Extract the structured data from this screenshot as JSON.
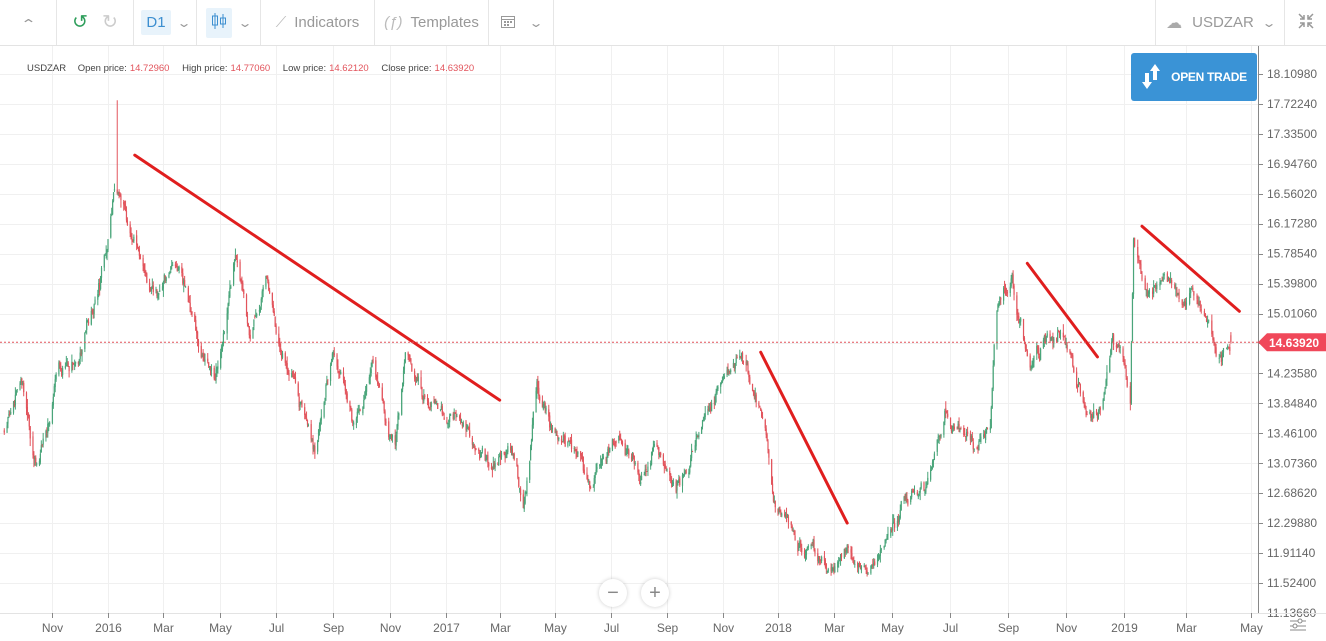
{
  "toolbar": {
    "timeframe": "D1",
    "indicators_label": "Indicators",
    "templates_label": "Templates",
    "symbol": "USDZAR",
    "icons": [
      "chevron-up-icon",
      "undo-icon",
      "redo-icon",
      "chevron-down-icon",
      "candlestick-icon",
      "indicators-icon",
      "function-icon",
      "calendar-icon",
      "cloud-upload-icon",
      "fullscreen-exit-icon"
    ]
  },
  "info": {
    "symbol": "USDZAR",
    "open_label": "Open price:",
    "open": "14.72960",
    "high_label": "High price:",
    "high": "14.77060",
    "low_label": "Low price:",
    "low": "14.62120",
    "close_label": "Close price:",
    "close": "14.63920"
  },
  "open_trade_label": "OPEN TRADE",
  "current_price_label": "14.63920",
  "colors": {
    "up": "#4aa57a",
    "down": "#e2545c",
    "trendline": "#e01e1e",
    "accent": "#3a93d6",
    "price_line": "#e2545c"
  },
  "chart_data": {
    "type": "candlestick",
    "symbol": "USDZAR",
    "timeframe": "D1",
    "ylim": [
      11.1366,
      18.1098
    ],
    "y_ticks": [
      "18.10980",
      "17.72240",
      "17.33500",
      "16.94760",
      "16.56020",
      "16.17280",
      "15.78540",
      "15.39800",
      "15.01060",
      "14.23580",
      "13.84840",
      "13.46100",
      "13.07360",
      "12.68620",
      "12.29880",
      "11.91140",
      "11.52400",
      "11.13660"
    ],
    "x_ticks": [
      {
        "label": "Nov",
        "date": "2015-11-01"
      },
      {
        "label": "2016",
        "date": "2016-01-01"
      },
      {
        "label": "Mar",
        "date": "2016-03-01"
      },
      {
        "label": "May",
        "date": "2016-05-01"
      },
      {
        "label": "Jul",
        "date": "2016-07-01"
      },
      {
        "label": "Sep",
        "date": "2016-09-01"
      },
      {
        "label": "Nov",
        "date": "2016-11-01"
      },
      {
        "label": "2017",
        "date": "2017-01-01"
      },
      {
        "label": "Mar",
        "date": "2017-03-01"
      },
      {
        "label": "May",
        "date": "2017-05-01"
      },
      {
        "label": "Jul",
        "date": "2017-07-01"
      },
      {
        "label": "Sep",
        "date": "2017-09-01"
      },
      {
        "label": "Nov",
        "date": "2017-11-01"
      },
      {
        "label": "2018",
        "date": "2018-01-01"
      },
      {
        "label": "Mar",
        "date": "2018-03-01"
      },
      {
        "label": "May",
        "date": "2018-05-01"
      },
      {
        "label": "Jul",
        "date": "2018-07-01"
      },
      {
        "label": "Sep",
        "date": "2018-09-01"
      },
      {
        "label": "Nov",
        "date": "2018-11-01"
      },
      {
        "label": "2019",
        "date": "2019-01-01"
      },
      {
        "label": "Mar",
        "date": "2019-03-01"
      },
      {
        "label": "May",
        "date": "2019-05-01"
      }
    ],
    "close_path": [
      [
        "2015-09-11",
        13.5
      ],
      [
        "2015-09-28",
        14.02
      ],
      [
        "2015-10-17",
        13.05
      ],
      [
        "2015-11-10",
        14.28
      ],
      [
        "2015-12-02",
        14.47
      ],
      [
        "2015-12-18",
        15.31
      ],
      [
        "2016-01-01",
        15.96
      ],
      [
        "2016-01-08",
        16.74
      ],
      [
        "2016-01-25",
        16.09
      ],
      [
        "2016-02-15",
        15.31
      ],
      [
        "2016-03-14",
        15.7
      ],
      [
        "2016-04-10",
        14.54
      ],
      [
        "2016-04-26",
        14.21
      ],
      [
        "2016-05-18",
        15.77
      ],
      [
        "2016-06-03",
        14.8
      ],
      [
        "2016-06-22",
        15.38
      ],
      [
        "2016-07-16",
        14.28
      ],
      [
        "2016-08-12",
        13.31
      ],
      [
        "2016-09-01",
        14.54
      ],
      [
        "2016-09-25",
        13.57
      ],
      [
        "2016-10-13",
        14.28
      ],
      [
        "2016-11-07",
        13.24
      ],
      [
        "2016-11-18",
        14.47
      ],
      [
        "2016-12-15",
        13.89
      ],
      [
        "2017-01-16",
        13.63
      ],
      [
        "2017-02-18",
        12.98
      ],
      [
        "2017-03-12",
        13.24
      ],
      [
        "2017-03-27",
        12.47
      ],
      [
        "2017-04-11",
        13.89
      ],
      [
        "2017-05-06",
        13.37
      ],
      [
        "2017-06-08",
        12.79
      ],
      [
        "2017-07-11",
        13.44
      ],
      [
        "2017-08-02",
        12.92
      ],
      [
        "2017-08-19",
        13.37
      ],
      [
        "2017-09-15",
        12.85
      ],
      [
        "2017-10-13",
        13.7
      ],
      [
        "2017-11-06",
        14.28
      ],
      [
        "2017-11-20",
        14.47
      ],
      [
        "2017-12-18",
        13.63
      ],
      [
        "2017-12-29",
        12.6
      ],
      [
        "2018-01-24",
        12.08
      ],
      [
        "2018-02-25",
        11.63
      ],
      [
        "2018-03-13",
        11.89
      ],
      [
        "2018-03-31",
        11.69
      ],
      [
        "2018-04-24",
        12.08
      ],
      [
        "2018-05-15",
        12.6
      ],
      [
        "2018-06-05",
        12.73
      ],
      [
        "2018-06-26",
        13.76
      ],
      [
        "2018-07-28",
        13.18
      ],
      [
        "2018-08-13",
        13.5
      ],
      [
        "2018-08-18",
        14.93
      ],
      [
        "2018-09-05",
        15.44
      ],
      [
        "2018-09-24",
        14.28
      ],
      [
        "2018-10-10",
        14.8
      ],
      [
        "2018-10-31",
        14.67
      ],
      [
        "2018-11-21",
        13.89
      ],
      [
        "2018-12-04",
        13.7
      ],
      [
        "2018-12-20",
        14.54
      ],
      [
        "2018-12-28",
        14.41
      ],
      [
        "2019-01-07",
        13.83
      ],
      [
        "2019-01-10",
        15.9
      ],
      [
        "2019-01-23",
        15.31
      ],
      [
        "2019-02-08",
        15.51
      ],
      [
        "2019-02-24",
        15.18
      ],
      [
        "2019-03-06",
        15.38
      ],
      [
        "2019-03-22",
        14.93
      ],
      [
        "2019-04-01",
        14.47
      ],
      [
        "2019-04-14",
        14.6392
      ]
    ],
    "peak": {
      "date": "2016-01-11",
      "high": 17.77
    },
    "last_candle": {
      "open": 14.7296,
      "high": 14.7706,
      "low": 14.6212,
      "close": 14.6392
    },
    "current_price": 14.6392,
    "trendlines": [
      [
        [
          "2016-01-30",
          17.06
        ],
        [
          "2017-03-01",
          13.89
        ]
      ],
      [
        [
          "2017-12-13",
          14.51
        ],
        [
          "2018-03-15",
          12.3
        ]
      ],
      [
        [
          "2018-09-21",
          15.66
        ],
        [
          "2018-12-04",
          14.45
        ]
      ],
      [
        [
          "2019-01-18",
          16.14
        ],
        [
          "2019-04-20",
          15.04
        ]
      ]
    ],
    "grid": true
  },
  "zoom": {
    "out": "−",
    "in": "+"
  }
}
